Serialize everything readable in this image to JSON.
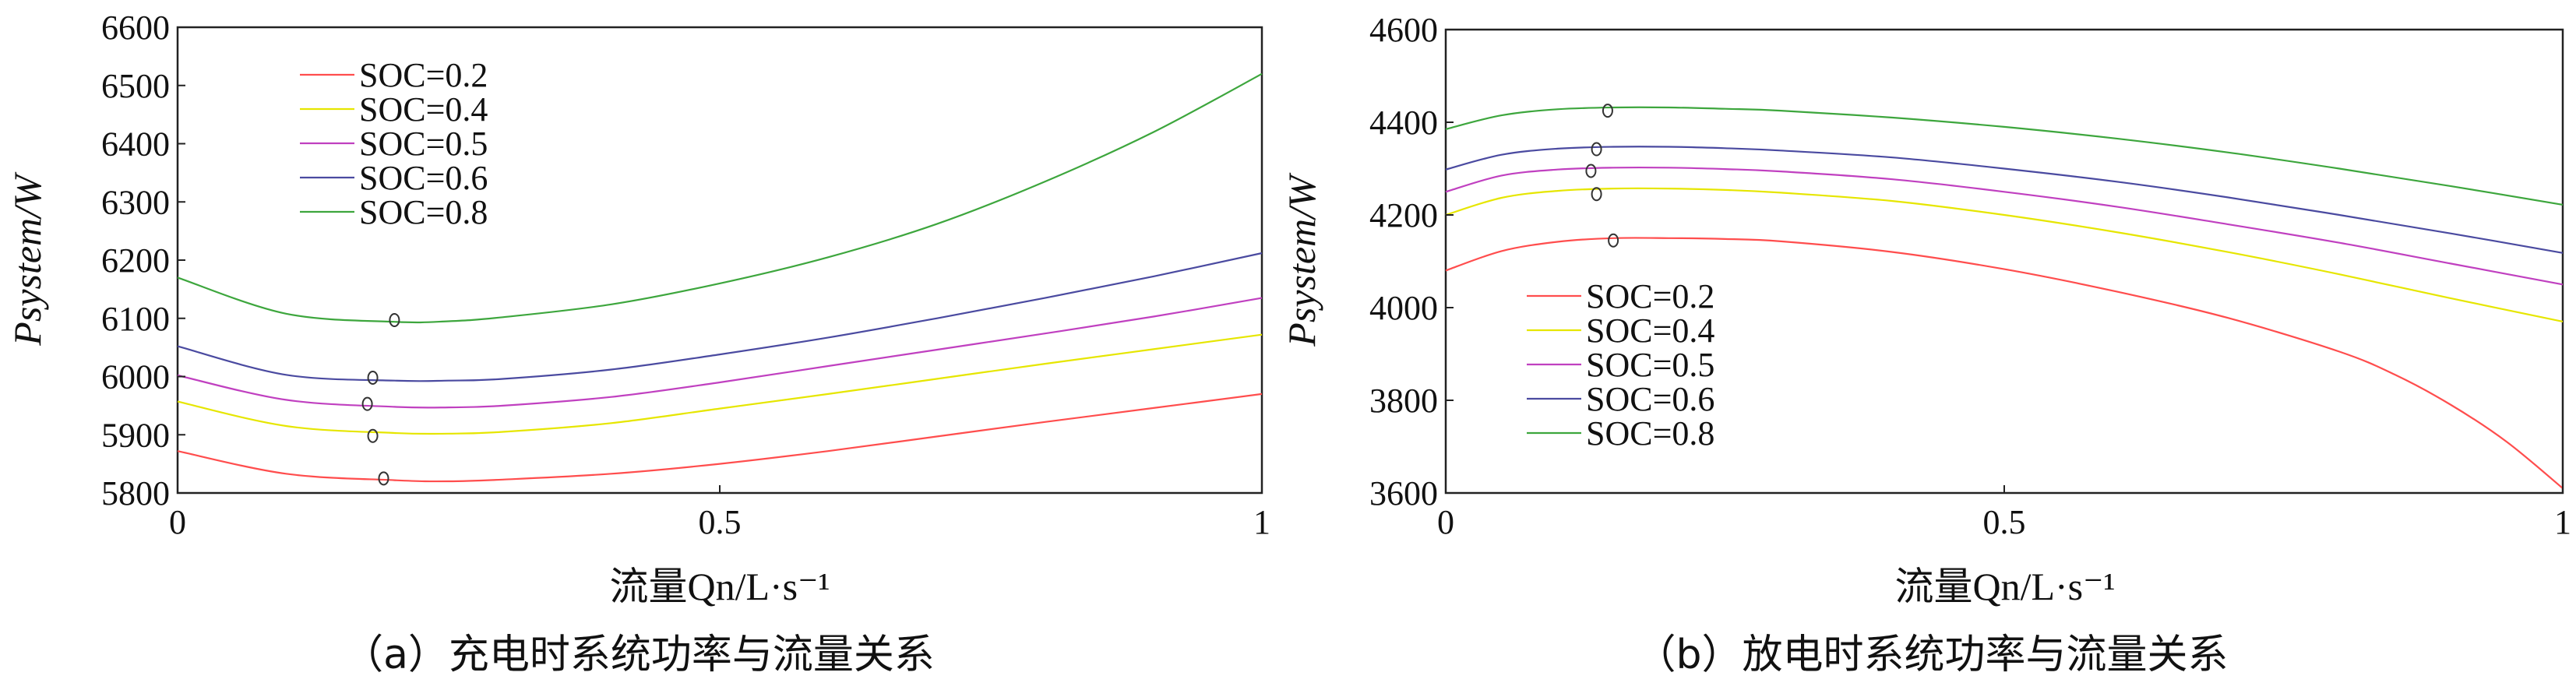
{
  "chart_data": [
    {
      "type": "line",
      "caption": "（a）充电时系统功率与流量关系",
      "xlabel": "流量Qn/L·s⁻¹",
      "ylabel": "Psystem/W",
      "xlim": [
        0,
        1
      ],
      "ylim": [
        5800,
        6600
      ],
      "xticks": [
        0,
        0.5,
        1
      ],
      "xtick_labels": [
        "0",
        "0.5",
        "1"
      ],
      "yticks": [
        5800,
        5900,
        6000,
        6100,
        6200,
        6300,
        6400,
        6500,
        6600
      ],
      "ytick_labels": [
        "5800",
        "5900",
        "6000",
        "6100",
        "6200",
        "6300",
        "6400",
        "6500",
        "6600"
      ],
      "legend_position": "top-left",
      "series": [
        {
          "name": "SOC=0.2",
          "color": "#ff4d4d",
          "x": [
            0,
            0.1,
            0.2,
            0.25,
            0.3,
            0.4,
            0.5,
            0.6,
            0.7,
            0.8,
            0.9,
            1.0
          ],
          "y": [
            5872,
            5833,
            5822,
            5820,
            5823,
            5833,
            5850,
            5872,
            5897,
            5922,
            5946,
            5970
          ],
          "marker": {
            "x": 0.19,
            "y": 5825
          }
        },
        {
          "name": "SOC=0.4",
          "color": "#e6e600",
          "x": [
            0,
            0.1,
            0.2,
            0.25,
            0.3,
            0.4,
            0.5,
            0.6,
            0.7,
            0.8,
            0.9,
            1.0
          ],
          "y": [
            5957,
            5915,
            5903,
            5902,
            5905,
            5920,
            5945,
            5970,
            5996,
            6022,
            6047,
            6072
          ],
          "marker": {
            "x": 0.18,
            "y": 5898
          }
        },
        {
          "name": "SOC=0.5",
          "color": "#c040c0",
          "x": [
            0,
            0.1,
            0.2,
            0.25,
            0.3,
            0.4,
            0.5,
            0.6,
            0.7,
            0.8,
            0.9,
            1.0
          ],
          "y": [
            6002,
            5960,
            5948,
            5947,
            5950,
            5965,
            5990,
            6018,
            6046,
            6074,
            6103,
            6135
          ],
          "marker": {
            "x": 0.175,
            "y": 5953
          }
        },
        {
          "name": "SOC=0.6",
          "color": "#4a4aa0",
          "x": [
            0,
            0.1,
            0.2,
            0.25,
            0.3,
            0.4,
            0.5,
            0.6,
            0.7,
            0.8,
            0.9,
            1.0
          ],
          "y": [
            6052,
            6003,
            5993,
            5993,
            5996,
            6012,
            6038,
            6067,
            6100,
            6135,
            6172,
            6212
          ],
          "marker": {
            "x": 0.18,
            "y": 5998
          }
        },
        {
          "name": "SOC=0.8",
          "color": "#3da63d",
          "x": [
            0,
            0.1,
            0.2,
            0.25,
            0.3,
            0.4,
            0.5,
            0.6,
            0.7,
            0.8,
            0.9,
            1.0
          ],
          "y": [
            6170,
            6108,
            6094,
            6095,
            6102,
            6124,
            6160,
            6205,
            6262,
            6335,
            6420,
            6520
          ],
          "marker": {
            "x": 0.2,
            "y": 6097
          }
        }
      ]
    },
    {
      "type": "line",
      "caption": "（b）放电时系统功率与流量关系",
      "xlabel": "流量Qn/L·s⁻¹",
      "ylabel": "Psystem/W",
      "xlim": [
        0,
        1
      ],
      "ylim": [
        3600,
        4600
      ],
      "xticks": [
        0,
        0.5,
        1
      ],
      "xtick_labels": [
        "0",
        "0.5",
        "1"
      ],
      "yticks": [
        3600,
        3800,
        4000,
        4200,
        4400,
        4600
      ],
      "ytick_labels": [
        "3600",
        "3800",
        "4000",
        "4200",
        "4400",
        "4600"
      ],
      "legend_position": "bottom-left",
      "series": [
        {
          "name": "SOC=0.2",
          "color": "#ff4d4d",
          "x": [
            0,
            0.05,
            0.1,
            0.15,
            0.2,
            0.25,
            0.3,
            0.4,
            0.5,
            0.6,
            0.7,
            0.8,
            0.85,
            0.9,
            0.95,
            1.0
          ],
          "y": [
            4080,
            4122,
            4142,
            4150,
            4150,
            4148,
            4143,
            4120,
            4083,
            4035,
            3978,
            3905,
            3855,
            3790,
            3710,
            3610
          ],
          "marker": {
            "x": 0.15,
            "y": 4145
          }
        },
        {
          "name": "SOC=0.4",
          "color": "#e6e600",
          "x": [
            0,
            0.05,
            0.1,
            0.15,
            0.2,
            0.25,
            0.3,
            0.4,
            0.5,
            0.6,
            0.7,
            0.8,
            0.9,
            1.0
          ],
          "y": [
            4200,
            4237,
            4252,
            4257,
            4257,
            4254,
            4248,
            4230,
            4200,
            4163,
            4120,
            4072,
            4020,
            3970
          ],
          "marker": {
            "x": 0.135,
            "y": 4245
          }
        },
        {
          "name": "SOC=0.5",
          "color": "#c040c0",
          "x": [
            0,
            0.05,
            0.1,
            0.15,
            0.2,
            0.25,
            0.3,
            0.4,
            0.5,
            0.6,
            0.7,
            0.8,
            0.9,
            1.0
          ],
          "y": [
            4250,
            4285,
            4298,
            4302,
            4302,
            4299,
            4294,
            4277,
            4250,
            4218,
            4180,
            4140,
            4095,
            4050
          ],
          "marker": {
            "x": 0.13,
            "y": 4295
          }
        },
        {
          "name": "SOC=0.6",
          "color": "#4a4aa0",
          "x": [
            0,
            0.05,
            0.1,
            0.15,
            0.2,
            0.25,
            0.3,
            0.4,
            0.5,
            0.6,
            0.7,
            0.8,
            0.9,
            1.0
          ],
          "y": [
            4298,
            4330,
            4343,
            4347,
            4347,
            4344,
            4339,
            4324,
            4300,
            4272,
            4238,
            4200,
            4160,
            4118
          ],
          "marker": {
            "x": 0.135,
            "y": 4342
          }
        },
        {
          "name": "SOC=0.8",
          "color": "#3da63d",
          "x": [
            0,
            0.05,
            0.1,
            0.15,
            0.2,
            0.25,
            0.3,
            0.4,
            0.5,
            0.6,
            0.7,
            0.8,
            0.9,
            1.0
          ],
          "y": [
            4385,
            4415,
            4428,
            4432,
            4432,
            4429,
            4425,
            4410,
            4390,
            4365,
            4335,
            4300,
            4262,
            4222
          ],
          "marker": {
            "x": 0.145,
            "y": 4425
          }
        }
      ]
    }
  ]
}
